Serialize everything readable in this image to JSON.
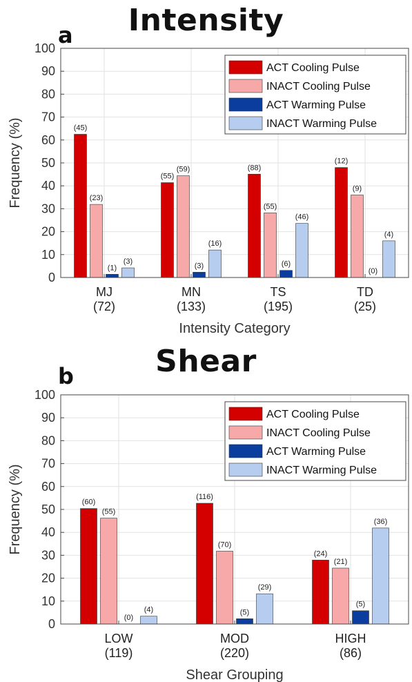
{
  "chart_data": [
    {
      "type": "bar",
      "panel_letter": "a",
      "title": "Intensity",
      "xlabel": "Intensity Category",
      "ylabel": "Frequency (%)",
      "ylim": [
        0,
        100
      ],
      "yticks": [
        0,
        10,
        20,
        30,
        40,
        50,
        60,
        70,
        80,
        90,
        100
      ],
      "grid": true,
      "legend_position": "top-right",
      "categories": [
        "MJ",
        "MN",
        "TS",
        "TD"
      ],
      "category_counts": [
        "(72)",
        "(133)",
        "(195)",
        "(25)"
      ],
      "series": [
        {
          "name": "ACT Cooling Pulse",
          "color": "#d40000",
          "values": [
            62.5,
            41.4,
            45.1,
            48.0
          ],
          "counts": [
            "(45)",
            "(55)",
            "(88)",
            "(12)"
          ]
        },
        {
          "name": "INACT Cooling Pulse",
          "color": "#f7a8a8",
          "values": [
            31.9,
            44.4,
            28.2,
            36.0
          ],
          "counts": [
            "(23)",
            "(59)",
            "(55)",
            "(9)"
          ]
        },
        {
          "name": "ACT Warming Pulse",
          "color": "#0a3d9e",
          "values": [
            1.4,
            2.3,
            3.1,
            0.0
          ],
          "counts": [
            "(1)",
            "(3)",
            "(6)",
            "(0)"
          ]
        },
        {
          "name": "INACT Warming Pulse",
          "color": "#b7cdf0",
          "values": [
            4.2,
            12.0,
            23.6,
            16.0
          ],
          "counts": [
            "(3)",
            "(16)",
            "(46)",
            "(4)"
          ]
        }
      ]
    },
    {
      "type": "bar",
      "panel_letter": "b",
      "title": "Shear",
      "xlabel": "Shear Grouping",
      "ylabel": "Frequency (%)",
      "ylim": [
        0,
        100
      ],
      "yticks": [
        0,
        10,
        20,
        30,
        40,
        50,
        60,
        70,
        80,
        90,
        100
      ],
      "grid": true,
      "legend_position": "top-right",
      "categories": [
        "LOW",
        "MOD",
        "HIGH"
      ],
      "category_counts": [
        "(119)",
        "(220)",
        "(86)"
      ],
      "series": [
        {
          "name": "ACT Cooling Pulse",
          "color": "#d40000",
          "values": [
            50.4,
            52.7,
            27.9
          ],
          "counts": [
            "(60)",
            "(116)",
            "(24)"
          ]
        },
        {
          "name": "INACT Cooling Pulse",
          "color": "#f7a8a8",
          "values": [
            46.2,
            31.8,
            24.4
          ],
          "counts": [
            "(55)",
            "(70)",
            "(21)"
          ]
        },
        {
          "name": "ACT Warming Pulse",
          "color": "#0a3d9e",
          "values": [
            0.0,
            2.3,
            5.8
          ],
          "counts": [
            "(0)",
            "(5)",
            "(5)"
          ]
        },
        {
          "name": "INACT Warming Pulse",
          "color": "#b7cdf0",
          "values": [
            3.4,
            13.2,
            41.9
          ],
          "counts": [
            "(4)",
            "(29)",
            "(36)"
          ]
        }
      ]
    }
  ]
}
